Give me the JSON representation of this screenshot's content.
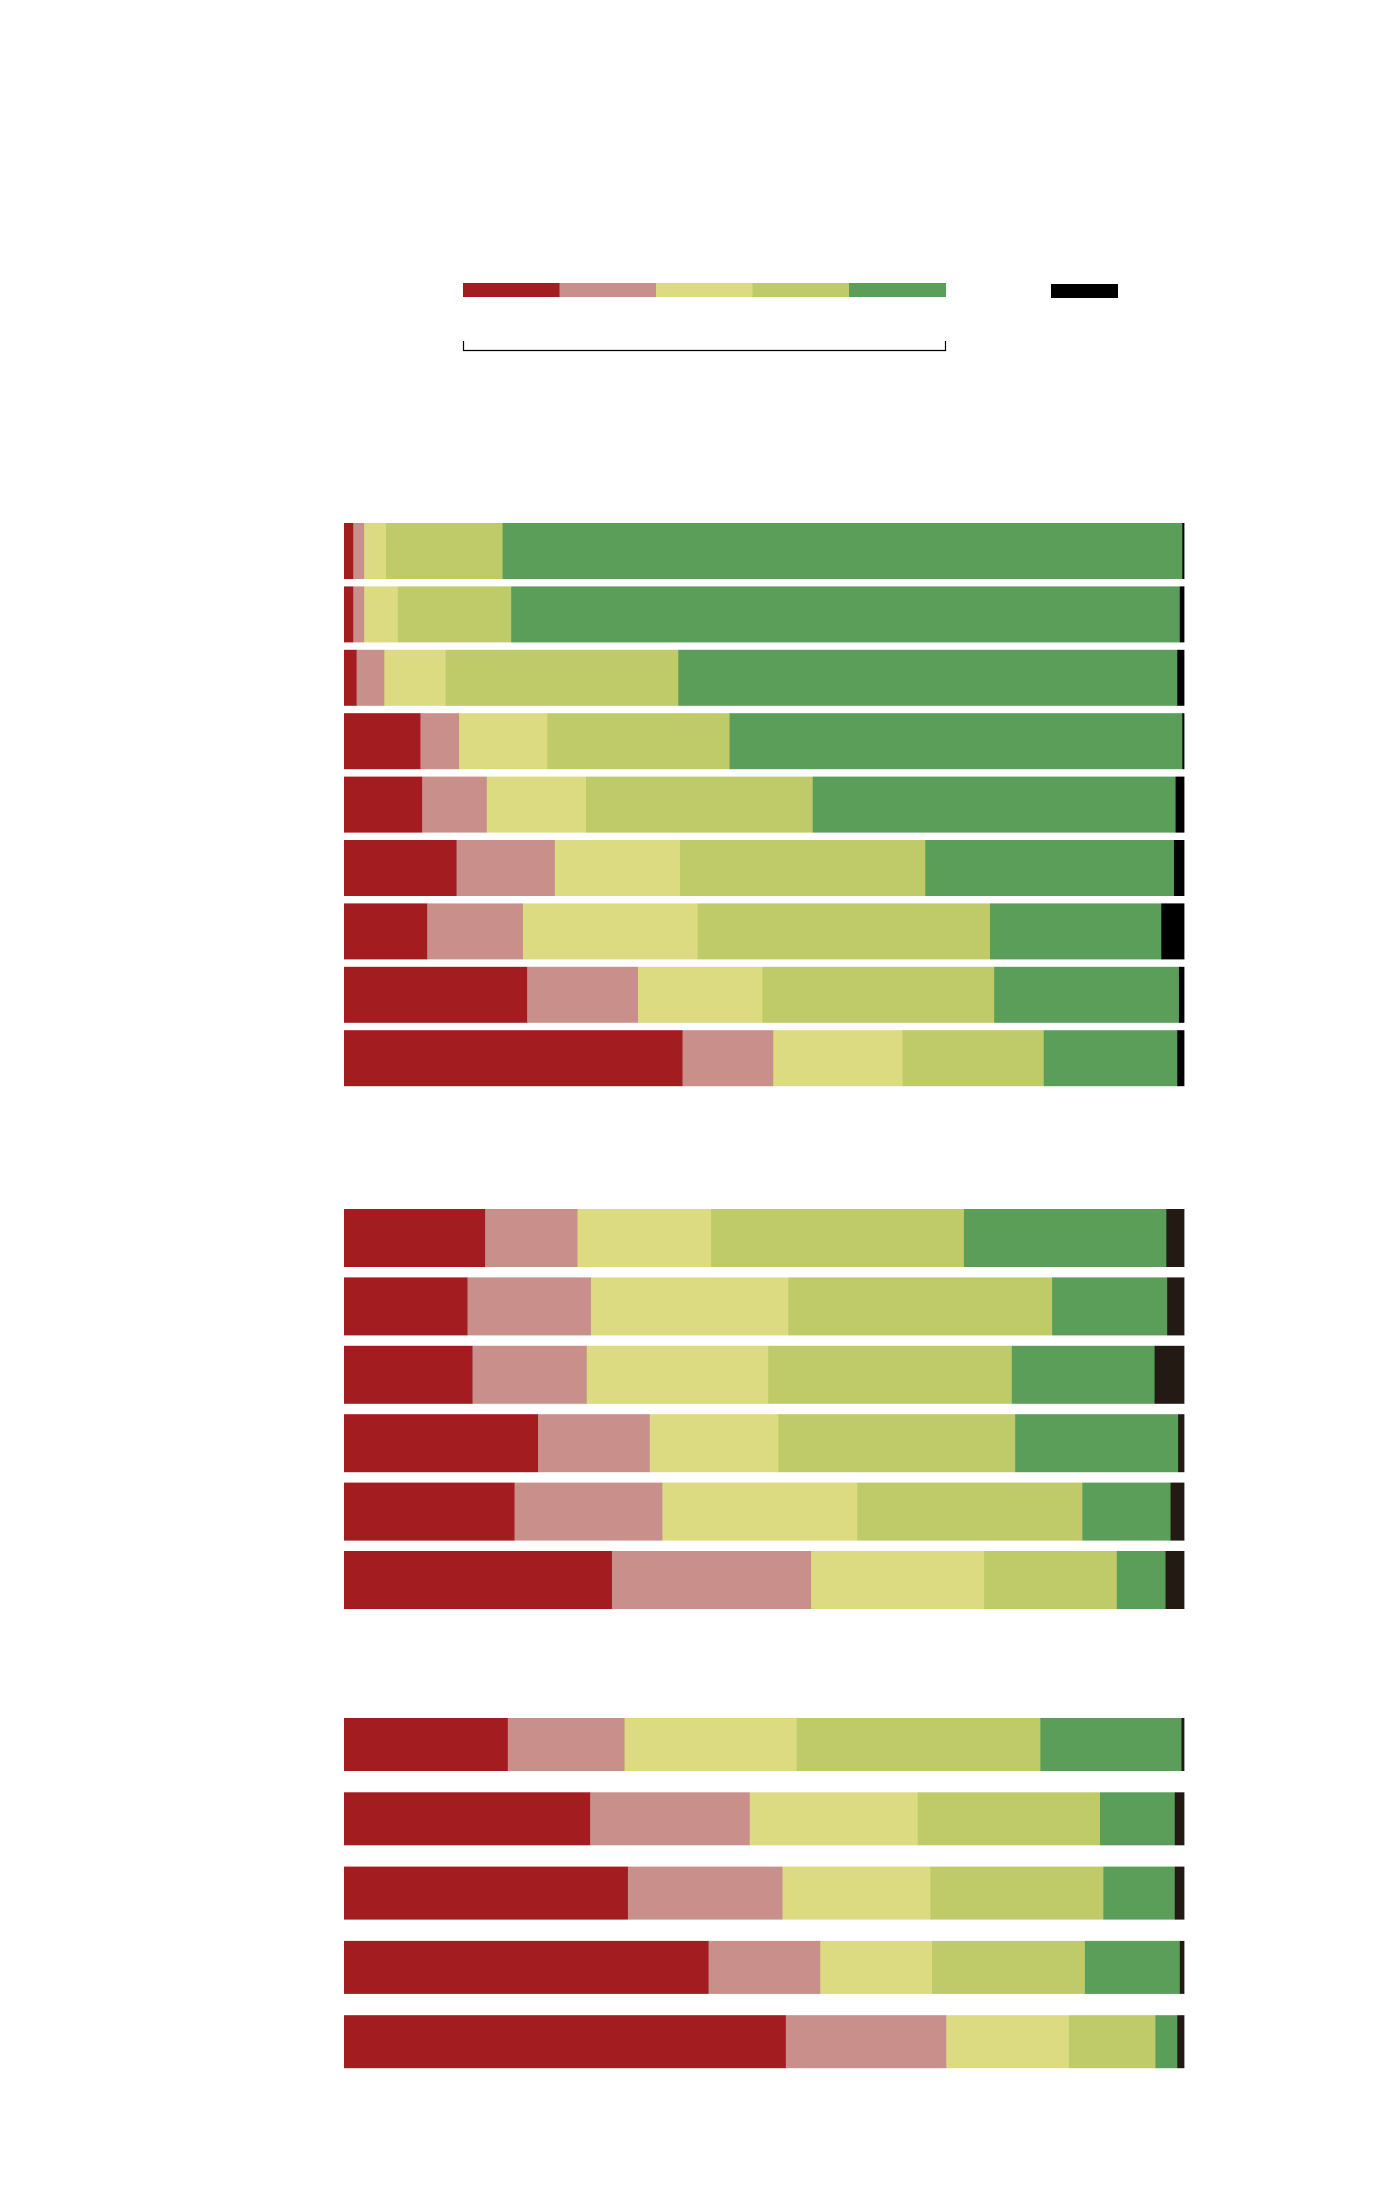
{
  "colors": {
    "scale": [
      "#a31c1f",
      "#c98f8a",
      "#dddb82",
      "#bfcb69",
      "#5a9e59"
    ],
    "na": "#000000",
    "na_group2": "#231a14"
  },
  "legend": {
    "scale_colors": [
      "#a31c1f",
      "#c98f8a",
      "#dddb82",
      "#bfcb69",
      "#5a9e59"
    ],
    "na_color": "#000000"
  },
  "chart_data": [
    {
      "type": "bar",
      "orientation": "horizontal",
      "stacked": "100%",
      "na_color": "#000000",
      "series": [
        {
          "values": [
            1.1,
            1.3,
            2.6,
            13.9,
            81.0,
            0.2
          ]
        },
        {
          "values": [
            1.1,
            1.3,
            4.0,
            13.5,
            79.6,
            0.5
          ]
        },
        {
          "values": [
            1.5,
            3.3,
            7.3,
            27.7,
            59.4,
            0.8
          ]
        },
        {
          "values": [
            9.1,
            4.6,
            10.5,
            21.7,
            53.9,
            0.2
          ]
        },
        {
          "values": [
            9.3,
            7.7,
            11.8,
            27.0,
            43.2,
            1.0
          ]
        },
        {
          "values": [
            13.4,
            11.7,
            14.9,
            29.2,
            29.6,
            1.2
          ]
        },
        {
          "values": [
            9.9,
            11.4,
            20.8,
            34.8,
            20.4,
            2.7
          ]
        },
        {
          "values": [
            21.8,
            13.2,
            14.8,
            27.6,
            22.0,
            0.6
          ]
        },
        {
          "values": [
            40.3,
            10.8,
            15.4,
            16.8,
            15.9,
            0.8
          ]
        }
      ]
    },
    {
      "type": "bar",
      "orientation": "horizontal",
      "stacked": "100%",
      "na_color": "#231a14",
      "series": [
        {
          "values": [
            16.8,
            11.0,
            15.9,
            30.1,
            24.1,
            2.1
          ]
        },
        {
          "values": [
            14.7,
            14.7,
            23.5,
            31.4,
            13.7,
            2.0
          ]
        },
        {
          "values": [
            15.3,
            13.6,
            21.6,
            29.0,
            17.0,
            3.5
          ]
        },
        {
          "values": [
            23.1,
            13.3,
            15.3,
            28.2,
            19.4,
            0.7
          ]
        },
        {
          "values": [
            20.3,
            17.6,
            23.2,
            26.8,
            10.5,
            1.6
          ]
        },
        {
          "values": [
            31.9,
            23.7,
            20.6,
            15.8,
            5.8,
            2.2
          ]
        }
      ]
    },
    {
      "type": "bar",
      "orientation": "horizontal",
      "stacked": "100%",
      "na_color": "#231a14",
      "series": [
        {
          "values": [
            19.5,
            13.9,
            20.5,
            29.0,
            16.8,
            0.3
          ]
        },
        {
          "values": [
            29.3,
            19.0,
            20.0,
            21.7,
            8.9,
            1.1
          ]
        },
        {
          "values": [
            33.8,
            18.4,
            17.6,
            20.6,
            8.5,
            1.1
          ]
        },
        {
          "values": [
            43.4,
            13.3,
            13.3,
            18.2,
            11.3,
            0.5
          ]
        },
        {
          "values": [
            52.6,
            19.1,
            14.6,
            10.3,
            2.6,
            0.8
          ]
        }
      ]
    }
  ]
}
